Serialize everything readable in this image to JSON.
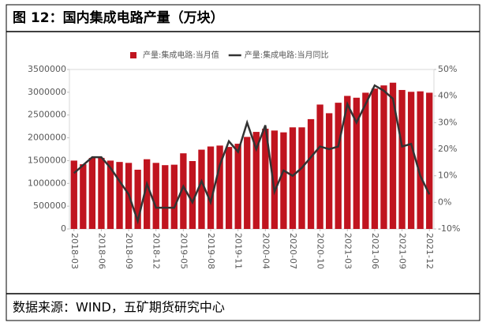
{
  "header": {
    "title": "图 12：国内集成电路产量（万块）"
  },
  "chart_data": {
    "type": "bar-line",
    "categories": [
      "2018-03",
      null,
      null,
      "2018-06",
      null,
      null,
      "2018-09",
      null,
      null,
      "2018-12",
      null,
      null,
      "2019-05",
      null,
      null,
      "2019-08",
      null,
      null,
      "2019-11",
      null,
      null,
      "2020-04",
      null,
      null,
      "2020-07",
      null,
      null,
      "2020-10",
      null,
      null,
      "2021-03",
      null,
      null,
      "2021-06",
      null,
      null,
      "2021-09",
      null,
      null,
      "2021-12"
    ],
    "series": [
      {
        "name": "产量:集成电路:当月值",
        "color": "#c0141f",
        "type": "bar",
        "values": [
          1500000,
          1420000,
          1560000,
          1560000,
          1500000,
          1470000,
          1450000,
          1300000,
          1530000,
          1450000,
          1400000,
          1410000,
          1660000,
          1490000,
          1740000,
          1810000,
          1830000,
          1800000,
          1870000,
          2020000,
          2130000,
          2200000,
          2160000,
          2120000,
          2230000,
          2230000,
          2410000,
          2730000,
          2540000,
          2770000,
          2920000,
          2880000,
          2990000,
          3080000,
          3150000,
          3210000,
          3050000,
          3010000,
          3020000,
          2990000
        ]
      },
      {
        "name": "产量:集成电路:当月同比",
        "color": "#333333",
        "type": "line",
        "axis": "y2",
        "values": [
          11,
          14,
          17,
          17,
          13,
          8,
          3,
          -7,
          7,
          -2,
          -2,
          -2,
          6,
          0,
          8,
          0,
          14,
          23,
          19,
          30,
          20,
          29,
          4,
          12,
          10,
          13,
          17,
          21,
          20,
          21,
          37,
          30,
          37,
          44,
          42,
          39,
          21,
          22,
          10,
          3
        ]
      }
    ],
    "ylim": [
      0,
      3500000
    ],
    "yticks": [
      0,
      500000,
      1000000,
      1500000,
      2000000,
      2500000,
      3000000,
      3500000
    ],
    "y2lim": [
      -10,
      50
    ],
    "y2ticks": [
      {
        "value": -10,
        "label": "-10%"
      },
      {
        "value": 0,
        "label": "0%"
      },
      {
        "value": 10,
        "label": "10%"
      },
      {
        "value": 20,
        "label": "20%"
      },
      {
        "value": 30,
        "label": "30%"
      },
      {
        "value": 40,
        "label": "40%"
      },
      {
        "value": 50,
        "label": "50%"
      }
    ]
  },
  "footer": {
    "source": "数据来源：WIND，五矿期货研究中心"
  }
}
